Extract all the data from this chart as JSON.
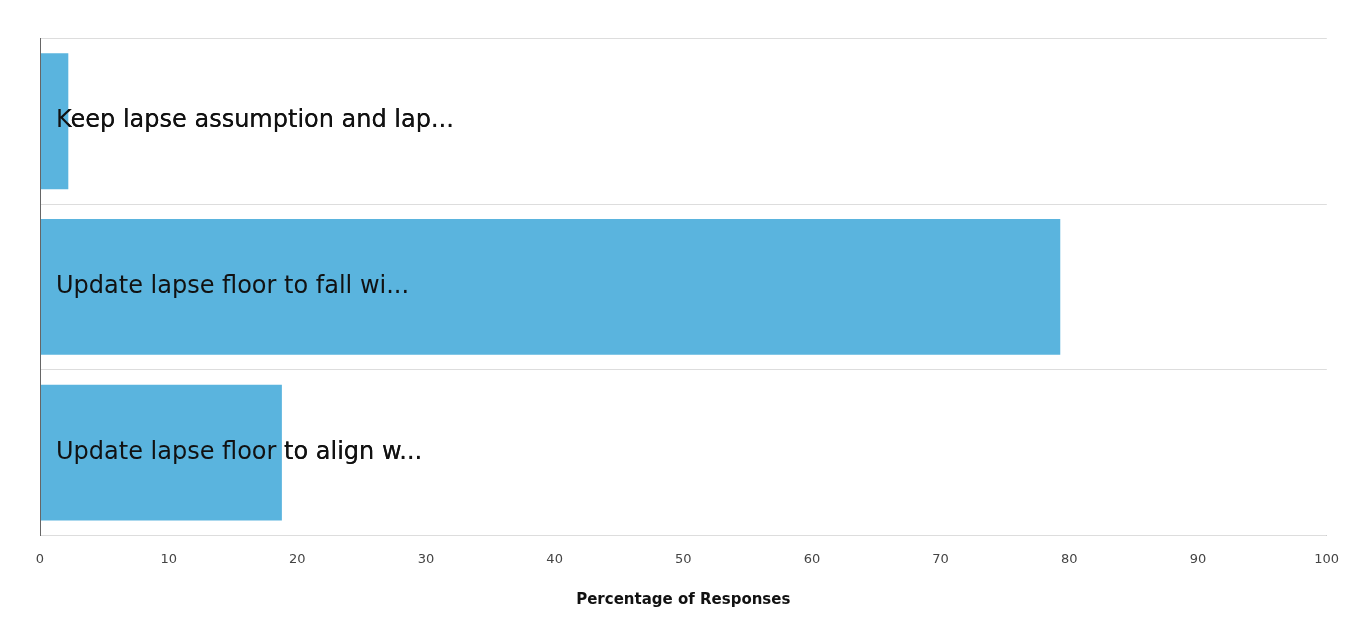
{
  "chart_data": {
    "type": "bar",
    "orientation": "horizontal",
    "xlabel": "Percentage of Responses",
    "categories": [
      "Keep lapse assumption and lap...",
      "Update lapse floor to fall wi...",
      "Update lapse floor to align w..."
    ],
    "values": [
      2.2,
      79.3,
      18.8
    ],
    "color": "#5ab4de",
    "xlim": [
      0,
      100
    ],
    "xticks": [
      0,
      10,
      20,
      30,
      40,
      50,
      60,
      70,
      80,
      90,
      100
    ],
    "grid": "y",
    "legend": false
  }
}
